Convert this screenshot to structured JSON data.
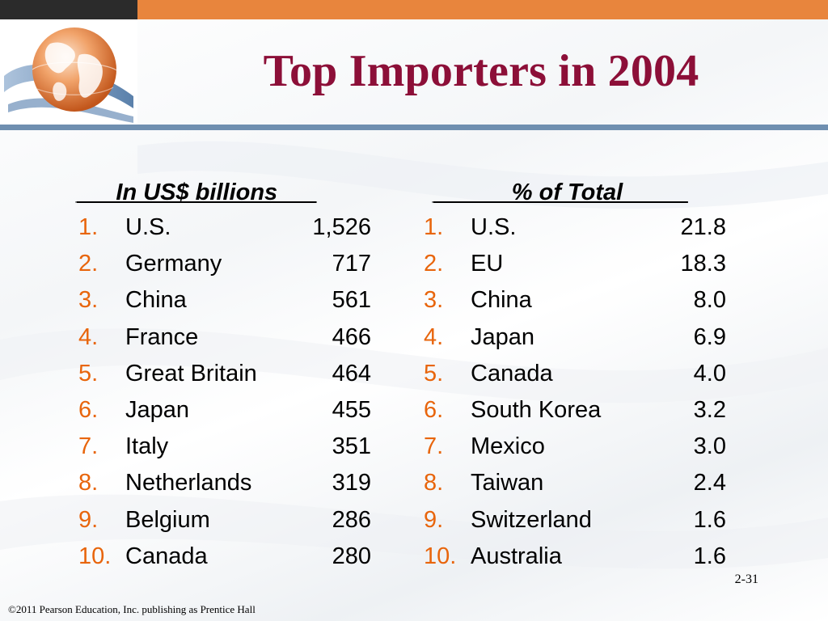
{
  "slide": {
    "title": "Top Importers in 2004",
    "page_number": "2-31",
    "footer": "©2011 Pearson Education, Inc. publishing as Prentice Hall"
  },
  "left_table": {
    "header": "___In US$ billions___",
    "rows": [
      {
        "rank": "1.",
        "country": "U.S.",
        "value": "1,526"
      },
      {
        "rank": "2.",
        "country": "Germany",
        "value": "717"
      },
      {
        "rank": "3.",
        "country": "China",
        "value": "561"
      },
      {
        "rank": "4.",
        "country": "France",
        "value": "466"
      },
      {
        "rank": "5.",
        "country": "Great Britain",
        "value": "464"
      },
      {
        "rank": "6.",
        "country": "Japan",
        "value": "455"
      },
      {
        "rank": "7.",
        "country": "Italy",
        "value": "351"
      },
      {
        "rank": "8.",
        "country": "Netherlands",
        "value": "319"
      },
      {
        "rank": "9.",
        "country": "Belgium",
        "value": "286"
      },
      {
        "rank": "10.",
        "country": "Canada",
        "value": "280"
      }
    ]
  },
  "right_table": {
    "header": "______% of Total_____",
    "rows": [
      {
        "rank": "1.",
        "country": "U.S.",
        "value": "21.8"
      },
      {
        "rank": "2.",
        "country": "EU",
        "value": "18.3"
      },
      {
        "rank": "3.",
        "country": "China",
        "value": "8.0"
      },
      {
        "rank": "4.",
        "country": "Japan",
        "value": "6.9"
      },
      {
        "rank": "5.",
        "country": "Canada",
        "value": "4.0"
      },
      {
        "rank": "6.",
        "country": "South Korea",
        "value": "3.2"
      },
      {
        "rank": "7.",
        "country": "Mexico",
        "value": "3.0"
      },
      {
        "rank": "8.",
        "country": "Taiwan",
        "value": "2.4"
      },
      {
        "rank": "9.",
        "country": "Switzerland",
        "value": "1.6"
      },
      {
        "rank": "10.",
        "country": "Australia",
        "value": "1.6"
      }
    ]
  },
  "colors": {
    "title": "#8c0f38",
    "rank": "#e8650c",
    "top_bar_orange": "#e8853d",
    "top_bar_dark": "#2b2b2b",
    "divider": "#6f8fb0"
  },
  "icons": {
    "logo": "globe-icon"
  }
}
